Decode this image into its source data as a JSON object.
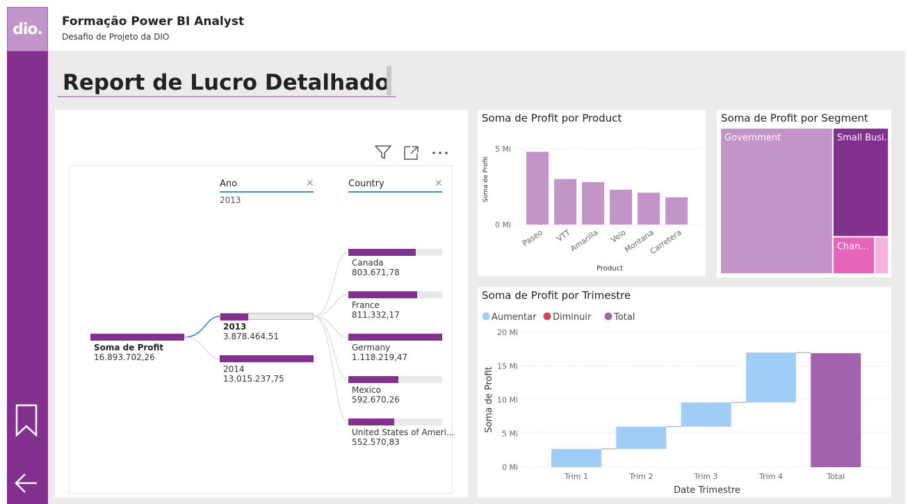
{
  "header": {
    "logo_text": "dio.",
    "title": "Formação Power BI Analyst",
    "subtitle": "Desafio de Projeto da DIO"
  },
  "report_title": "Report de Lucro Detalhado",
  "decomposition": {
    "root": {
      "label": "Soma de Profit",
      "value": "16.893.702,26"
    },
    "levels": [
      {
        "header": "Ano",
        "selected": "2013"
      },
      {
        "header": "Country",
        "selected": ""
      }
    ],
    "years": [
      {
        "label": "2013",
        "value": "3.878.464,51",
        "fraction": 0.3,
        "selected": true
      },
      {
        "label": "2014",
        "value": "13.015.237,75",
        "fraction": 1.0,
        "selected": false
      }
    ],
    "countries": [
      {
        "label": "Canada",
        "value": "803.671,78",
        "fraction": 0.72
      },
      {
        "label": "France",
        "value": "811.332,17",
        "fraction": 0.73
      },
      {
        "label": "Germany",
        "value": "1.118.219,47",
        "fraction": 1.0
      },
      {
        "label": "Mexico",
        "value": "592.670,26",
        "fraction": 0.53
      },
      {
        "label": "United States of Ameri...",
        "value": "552.570,83",
        "fraction": 0.49
      }
    ]
  },
  "chart_data": [
    {
      "type": "bar",
      "title": "Soma de Profit por Product",
      "xlabel": "Product",
      "ylabel": "Soma de Profit",
      "categories": [
        "Paseo",
        "VTT",
        "Amarilla",
        "Velo",
        "Montana",
        "Carretera"
      ],
      "values": [
        4.8,
        3.0,
        2.8,
        2.3,
        2.1,
        1.8
      ],
      "ylim": [
        0,
        5
      ],
      "yticks": [
        "0 Mi",
        "5 Mi"
      ],
      "tick_values": [
        0,
        5
      ],
      "color": "#c394c8"
    },
    {
      "type": "treemap",
      "title": "Soma de Profit por Segment",
      "segments": [
        {
          "label": "Government",
          "value": 11.39,
          "color": "#c394c8"
        },
        {
          "label": "Small Busi...",
          "value": 4.14,
          "color": "#84308f"
        },
        {
          "label": "Chan...",
          "value": 1.05,
          "color": "#e566b9"
        },
        {
          "label": "",
          "value": 0.31,
          "color": "#f4b2de"
        }
      ]
    },
    {
      "type": "waterfall",
      "title": "Soma de Profit por Trimestre",
      "xlabel": "Date Trimestre",
      "ylabel": "Soma de Profit",
      "legend": [
        {
          "label": "Aumentar",
          "color": "#9fcdf7"
        },
        {
          "label": "Diminuir",
          "color": "#d64550"
        },
        {
          "label": "Total",
          "color": "#a262ad"
        }
      ],
      "categories": [
        "Trim 1",
        "Trim 2",
        "Trim 3",
        "Trim 4",
        "Total"
      ],
      "increments": [
        2.7,
        3.3,
        3.6,
        7.4
      ],
      "total": 16.9,
      "ylim": [
        0,
        20
      ],
      "yticks": [
        "0 Mi",
        "5 Mi",
        "10 Mi",
        "15 Mi",
        "20 Mi"
      ],
      "tick_values": [
        0,
        5,
        10,
        15,
        20
      ]
    }
  ]
}
